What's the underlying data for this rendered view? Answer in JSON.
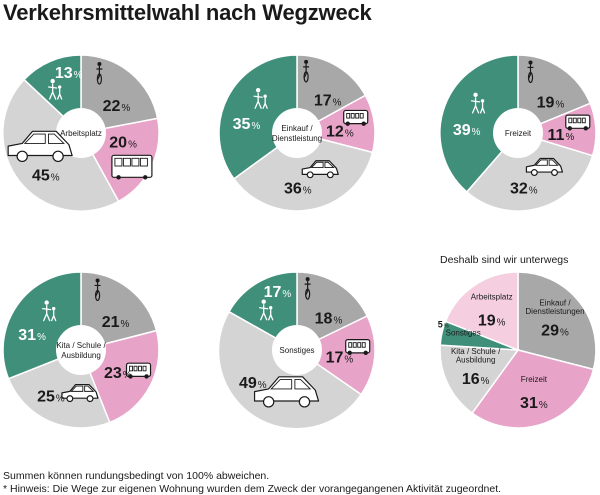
{
  "title": "Verkehrsmittelwahl nach Wegzweck",
  "summary_title": "Deshalb sind wir unterwegs",
  "footnotes": [
    "Summen können rundungsbedingt von 100% abweichen.",
    "* Hinweis: Die Wege zur eigenen Wohnung wurden dem Zweck der vorangegangenen Aktivität zugeordnet."
  ],
  "colors": {
    "walking": "#3f8f7a",
    "cycling": "#a8a8a8",
    "public_transport": "#e8a3c8",
    "car": "#d4d4d4",
    "summary_light_pink": "#f5cfe0",
    "summary_gray": "#c9c9c9"
  },
  "icons": [
    "pedestrian-icon",
    "bicycle-icon",
    "bus-icon",
    "car-icon"
  ],
  "chart_data": [
    {
      "type": "pie",
      "variant": "donut",
      "center_label": [
        "Arbeitsplatz"
      ],
      "slices": [
        {
          "mode": "cycling",
          "value": 22,
          "label": "22"
        },
        {
          "mode": "public_transport",
          "value": 20,
          "label": "20"
        },
        {
          "mode": "car",
          "value": 45,
          "label": "45"
        },
        {
          "mode": "walking",
          "value": 13,
          "label": "13"
        }
      ]
    },
    {
      "type": "pie",
      "variant": "donut",
      "center_label": [
        "Einkauf /",
        "Dienstleistung"
      ],
      "slices": [
        {
          "mode": "cycling",
          "value": 17,
          "label": "17"
        },
        {
          "mode": "public_transport",
          "value": 12,
          "label": "12"
        },
        {
          "mode": "car",
          "value": 36,
          "label": "36"
        },
        {
          "mode": "walking",
          "value": 35,
          "label": "35"
        }
      ]
    },
    {
      "type": "pie",
      "variant": "donut",
      "center_label": [
        "Freizeit"
      ],
      "slices": [
        {
          "mode": "cycling",
          "value": 19,
          "label": "19"
        },
        {
          "mode": "public_transport",
          "value": 11,
          "label": "11"
        },
        {
          "mode": "car",
          "value": 32,
          "label": "32"
        },
        {
          "mode": "walking",
          "value": 39,
          "label": "39"
        }
      ]
    },
    {
      "type": "pie",
      "variant": "donut",
      "center_label": [
        "Kita / Schule /",
        "Ausbildung"
      ],
      "slices": [
        {
          "mode": "cycling",
          "value": 21,
          "label": "21"
        },
        {
          "mode": "public_transport",
          "value": 23,
          "label": "23"
        },
        {
          "mode": "car",
          "value": 25,
          "label": "25"
        },
        {
          "mode": "walking",
          "value": 31,
          "label": "31"
        }
      ]
    },
    {
      "type": "pie",
      "variant": "donut",
      "center_label": [
        "Sonstiges"
      ],
      "slices": [
        {
          "mode": "cycling",
          "value": 18,
          "label": "18"
        },
        {
          "mode": "public_transport",
          "value": 17,
          "label": "17"
        },
        {
          "mode": "car",
          "value": 49,
          "label": "49"
        },
        {
          "mode": "walking",
          "value": 17,
          "label": "17"
        }
      ]
    },
    {
      "type": "pie",
      "variant": "summary",
      "slices": [
        {
          "category": "Einkauf / Dienstleistungen",
          "value": 29,
          "label": "29",
          "color": "#a8a8a8"
        },
        {
          "category": "Freizeit",
          "value": 31,
          "label": "31",
          "color": "#e8a3c8"
        },
        {
          "category": "Kita / Schule / Ausbildung",
          "value": 16,
          "label": "16",
          "color": "#d4d4d4"
        },
        {
          "category": "Sonstiges",
          "value": 5,
          "label": "5",
          "color": "#3f8f7a"
        },
        {
          "category": "Arbeitsplatz",
          "value": 19,
          "label": "19",
          "color": "#f5cfe0"
        }
      ]
    }
  ]
}
